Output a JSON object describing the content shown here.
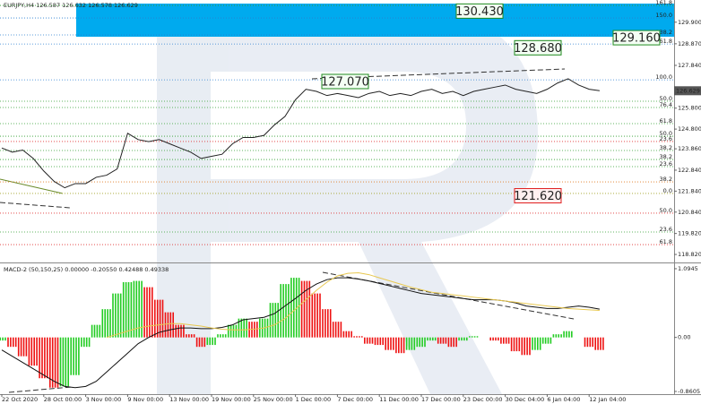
{
  "chart_data": [
    {
      "type": "line",
      "title": "EURJPY,H4 126.587 126.632 126.578 126.629",
      "color": "#222222",
      "values": [
        123.9,
        123.7,
        123.8,
        123.4,
        122.8,
        122.3,
        122.0,
        122.2,
        122.2,
        122.5,
        122.6,
        122.9,
        124.6,
        124.3,
        124.2,
        124.3,
        124.1,
        123.9,
        123.7,
        123.4,
        123.5,
        123.6,
        124.1,
        124.4,
        124.4,
        124.5,
        125.0,
        125.4,
        126.2,
        126.7,
        126.6,
        126.4,
        126.5,
        126.4,
        126.3,
        126.5,
        126.6,
        126.4,
        126.5,
        126.4,
        126.6,
        126.7,
        126.5,
        126.6,
        126.4,
        126.6,
        126.7,
        126.8,
        126.9,
        126.7,
        126.6,
        126.5,
        126.7,
        127.0,
        127.2,
        126.9,
        126.7,
        126.63
      ],
      "ylim": [
        118.48,
        130.83
      ],
      "yticks": [
        {
          "value": 129.9,
          "label": "129.900"
        },
        {
          "value": 128.87,
          "label": "128.870"
        },
        {
          "value": 127.84,
          "label": "127.840"
        },
        {
          "value": 125.8,
          "label": "125.800"
        },
        {
          "value": 124.8,
          "label": "124.800"
        },
        {
          "value": 123.86,
          "label": "123.860"
        },
        {
          "value": 122.84,
          "label": "122.840"
        },
        {
          "value": 121.84,
          "label": "121.840"
        },
        {
          "value": 120.84,
          "label": "120.840"
        },
        {
          "value": 119.82,
          "label": "119.820"
        },
        {
          "value": 118.82,
          "label": "118.820"
        }
      ],
      "current_price": 126.629,
      "annotations": [
        {
          "value": 130.43,
          "label": "130.430",
          "color": "#1e8a1e"
        },
        {
          "value": 129.16,
          "label": "129.160",
          "color": "#1e8a1e"
        },
        {
          "value": 128.68,
          "label": "128.680",
          "color": "#1e8a1e"
        },
        {
          "value": 127.07,
          "label": "127.070",
          "color": "#1e8a1e"
        },
        {
          "value": 121.62,
          "label": "121.620",
          "color": "#e02020"
        }
      ],
      "fib_levels": [
        {
          "price": 130.7,
          "label": "161.8",
          "color": "#2e9e2e"
        },
        {
          "price": 130.1,
          "label": "150.0",
          "color": "#2a7fd0"
        },
        {
          "price": 129.29,
          "label": "138.2",
          "color": "#2a7fd0"
        },
        {
          "price": 128.86,
          "label": "61.8",
          "color": "#2a7fd0"
        },
        {
          "price": 127.15,
          "label": "100.0",
          "color": "#2a7fd0"
        },
        {
          "price": 126.13,
          "label": "50.0",
          "color": "#2e9e2e"
        },
        {
          "price": 125.83,
          "label": "76.4",
          "color": "#2e9e2e"
        },
        {
          "price": 125.06,
          "label": "61.8",
          "color": "#2e9e2e"
        },
        {
          "price": 124.46,
          "label": "50.0",
          "color": "#2e9e2e"
        },
        {
          "price": 124.21,
          "label": "23.6",
          "color": "#e03030"
        },
        {
          "price": 123.78,
          "label": "38.2",
          "color": "#2e9e2e"
        },
        {
          "price": 123.35,
          "label": "38.2",
          "color": "#2e9e2e"
        },
        {
          "price": 123.01,
          "label": "23.6",
          "color": "#2e9e2e"
        },
        {
          "price": 122.28,
          "label": "38.2",
          "color": "#e07a20"
        },
        {
          "price": 121.73,
          "label": "0.0",
          "color": "#a0a020"
        },
        {
          "price": 120.79,
          "label": "50.0",
          "color": "#e03030"
        },
        {
          "price": 119.89,
          "label": "23.6",
          "color": "#2e9e2e"
        },
        {
          "price": 119.29,
          "label": "61.8",
          "color": "#e03030"
        }
      ]
    },
    {
      "type": "macd",
      "title": "MACD-2 (50,150,25) 0.00000 -0.20550 0.42488 0.49338",
      "categories": [
        "22 Oct 2020",
        null,
        null,
        null,
        "28 Oct 00:00",
        null,
        null,
        null,
        "3 Nov 00:00",
        null,
        null,
        null,
        "9 Nov 00:00",
        null,
        null,
        null,
        "13 Nov 00:00",
        null,
        null,
        null,
        "19 Nov 00:00",
        null,
        null,
        null,
        "25 Nov 00:00",
        null,
        null,
        null,
        "1 Dec 00:00",
        null,
        null,
        null,
        "7 Dec 00:00",
        null,
        null,
        null,
        "11 Dec 00:00",
        null,
        null,
        null,
        "17 Dec 00:00",
        null,
        null,
        null,
        "23 Dec 00:00",
        null,
        null,
        null,
        "30 Dec 04:00",
        null,
        null,
        null,
        "6 Jan 04:00",
        null,
        null,
        null,
        "12 Jan 04:00",
        null
      ],
      "histogram": {
        "up_color": "#22cc22",
        "down_color": "#ee1111",
        "values": [
          -0.05,
          -0.15,
          -0.3,
          -0.45,
          -0.65,
          -0.8,
          -0.78,
          -0.6,
          -0.15,
          0.2,
          0.45,
          0.7,
          0.88,
          0.9,
          0.8,
          0.6,
          0.4,
          0.2,
          0.05,
          -0.15,
          -0.12,
          0.05,
          0.2,
          0.3,
          0.25,
          0.3,
          0.55,
          0.85,
          0.95,
          0.9,
          0.7,
          0.45,
          0.25,
          0.1,
          0.02,
          -0.1,
          -0.12,
          -0.2,
          -0.25,
          -0.2,
          -0.15,
          -0.05,
          -0.1,
          -0.15,
          -0.05,
          0.02,
          0.0,
          -0.05,
          -0.1,
          -0.22,
          -0.28,
          -0.2,
          -0.1,
          0.05,
          0.1,
          0.0,
          -0.15,
          -0.2
        ]
      },
      "series": [
        {
          "color": "#111111",
          "values": [
            -0.2,
            -0.3,
            -0.4,
            -0.5,
            -0.6,
            -0.7,
            -0.78,
            -0.8,
            -0.78,
            -0.7,
            -0.55,
            -0.4,
            -0.25,
            -0.1,
            0.0,
            0.08,
            0.12,
            0.15,
            0.15,
            0.14,
            0.14,
            0.16,
            0.2,
            0.28,
            0.3,
            0.32,
            0.38,
            0.5,
            0.62,
            0.75,
            0.85,
            0.92,
            0.95,
            0.95,
            0.93,
            0.9,
            0.86,
            0.82,
            0.78,
            0.74,
            0.7,
            0.68,
            0.66,
            0.64,
            0.62,
            0.6,
            0.6,
            0.6,
            0.58,
            0.55,
            0.5,
            0.48,
            0.46,
            0.46,
            0.48,
            0.5,
            0.48,
            0.45
          ]
        },
        {
          "color": "#e8c850",
          "values": [
            null,
            null,
            null,
            null,
            null,
            null,
            null,
            null,
            null,
            null,
            0.0,
            0.05,
            0.1,
            0.15,
            0.18,
            0.2,
            0.22,
            0.22,
            0.2,
            0.18,
            0.15,
            0.13,
            0.12,
            0.12,
            0.13,
            0.15,
            0.2,
            0.3,
            0.45,
            0.6,
            0.75,
            0.88,
            0.98,
            1.02,
            1.03,
            1.0,
            0.95,
            0.9,
            0.85,
            0.8,
            0.76,
            0.72,
            0.7,
            0.68,
            0.66,
            0.64,
            0.62,
            0.6,
            0.58,
            0.56,
            0.54,
            0.52,
            0.5,
            0.48,
            0.46,
            0.45,
            0.44,
            0.43
          ]
        }
      ],
      "ylim": [
        -0.875,
        1.151
      ],
      "yticks": [
        1.0945,
        {
          "value": 0,
          "label": "0.00"
        },
        -0.8605
      ]
    }
  ]
}
